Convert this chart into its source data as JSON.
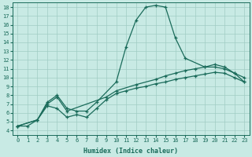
{
  "xlabel": "Humidex (Indice chaleur)",
  "bg_color": "#c8eae4",
  "grid_color": "#a0ccc4",
  "line_color": "#1a6b5a",
  "xlim": [
    -0.5,
    23.5
  ],
  "ylim": [
    3.5,
    18.5
  ],
  "xticks": [
    0,
    1,
    2,
    3,
    4,
    5,
    6,
    7,
    8,
    9,
    10,
    11,
    12,
    13,
    14,
    15,
    16,
    17,
    18,
    19,
    20,
    21,
    22,
    23
  ],
  "yticks": [
    4,
    5,
    6,
    7,
    8,
    9,
    10,
    11,
    12,
    13,
    14,
    15,
    16,
    17,
    18
  ],
  "line1_x": [
    0,
    1,
    2,
    3,
    4,
    5,
    6,
    7,
    8,
    10,
    11,
    12,
    13,
    14,
    15,
    16,
    17,
    19,
    20,
    21,
    22,
    23
  ],
  "line1_y": [
    4.5,
    4.5,
    5.2,
    7.2,
    8.0,
    6.5,
    6.2,
    6.2,
    7.2,
    9.5,
    13.5,
    16.5,
    18.0,
    18.2,
    18.0,
    14.5,
    12.2,
    11.2,
    11.2,
    11.0,
    10.5,
    9.5
  ],
  "line2_x": [
    0,
    2,
    3,
    4,
    5,
    9,
    10,
    12,
    14,
    15,
    16,
    17,
    18,
    19,
    20,
    21,
    22,
    23
  ],
  "line2_y": [
    4.5,
    5.2,
    7.0,
    7.8,
    6.2,
    7.8,
    8.5,
    9.2,
    9.8,
    10.2,
    10.5,
    10.8,
    11.0,
    11.2,
    11.5,
    11.2,
    10.5,
    10.0
  ],
  "line3_x": [
    0,
    2,
    3,
    4,
    5,
    6,
    7,
    8,
    9,
    10,
    11,
    12,
    13,
    14,
    15,
    16,
    17,
    18,
    19,
    20,
    21,
    22,
    23
  ],
  "line3_y": [
    4.5,
    5.2,
    6.8,
    6.5,
    5.5,
    5.8,
    5.5,
    6.5,
    7.5,
    8.2,
    8.5,
    8.8,
    9.0,
    9.3,
    9.5,
    9.8,
    10.0,
    10.2,
    10.4,
    10.6,
    10.5,
    10.0,
    9.5
  ]
}
